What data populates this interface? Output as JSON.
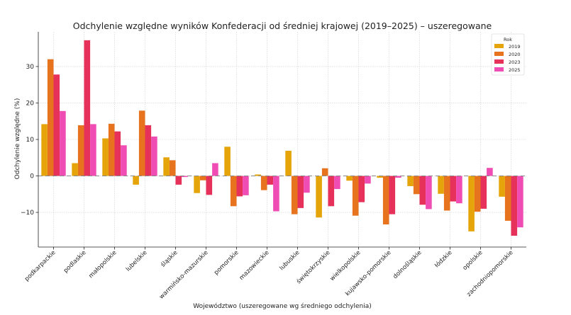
{
  "chart_data": {
    "type": "bar",
    "title": "Odchylenie względne wyników Konfederacji od średniej krajowej (2019–2025) – uszeregowane",
    "xlabel": "Województwo (uszeregowane wg średniego odchylenia)",
    "ylabel": "Odchylenie względne (%)",
    "ylim": [
      -19.5,
      39.5
    ],
    "yticks": [
      -10,
      0,
      10,
      20,
      30
    ],
    "grid": true,
    "reference_line": 0,
    "legend": {
      "title": "Rok",
      "position": "top-right"
    },
    "categories": [
      "podkarpackie",
      "podlaskie",
      "małopolskie",
      "lubelskie",
      "śląskie",
      "warmińsko-mazurskie",
      "pomorskie",
      "mazowieckie",
      "lubuskie",
      "świętokrzyskie",
      "wielkopolskie",
      "kujawsko-pomorskie",
      "dolnośląskie",
      "łódzkie",
      "opolskie",
      "zachodniopomorskie"
    ],
    "series": [
      {
        "name": "2019",
        "color": "#E5A50A",
        "values": [
          14.2,
          3.5,
          10.3,
          -2.4,
          5.1,
          -4.7,
          8.0,
          0.4,
          6.9,
          -11.4,
          -1.3,
          -0.5,
          -2.8,
          -4.9,
          -15.2,
          -5.7
        ]
      },
      {
        "name": "2020",
        "color": "#E8731E",
        "values": [
          32.0,
          13.9,
          14.3,
          17.9,
          4.3,
          -1.2,
          -8.3,
          -3.9,
          -10.5,
          2.1,
          -10.9,
          -13.3,
          -5.0,
          -9.5,
          -9.8,
          -12.3
        ]
      },
      {
        "name": "2023",
        "color": "#E6325A",
        "values": [
          27.8,
          37.2,
          12.2,
          13.9,
          -2.4,
          -5.2,
          -5.6,
          -2.4,
          -8.8,
          -8.3,
          -7.2,
          -10.5,
          -7.9,
          -7.0,
          -9.0,
          -16.4
        ]
      },
      {
        "name": "2025",
        "color": "#F04DB4",
        "values": [
          17.8,
          14.2,
          8.4,
          10.8,
          -0.3,
          3.5,
          -5.3,
          -9.7,
          -4.6,
          -3.6,
          -2.1,
          -0.5,
          -9.1,
          -7.5,
          2.2,
          -14.1
        ]
      }
    ]
  }
}
